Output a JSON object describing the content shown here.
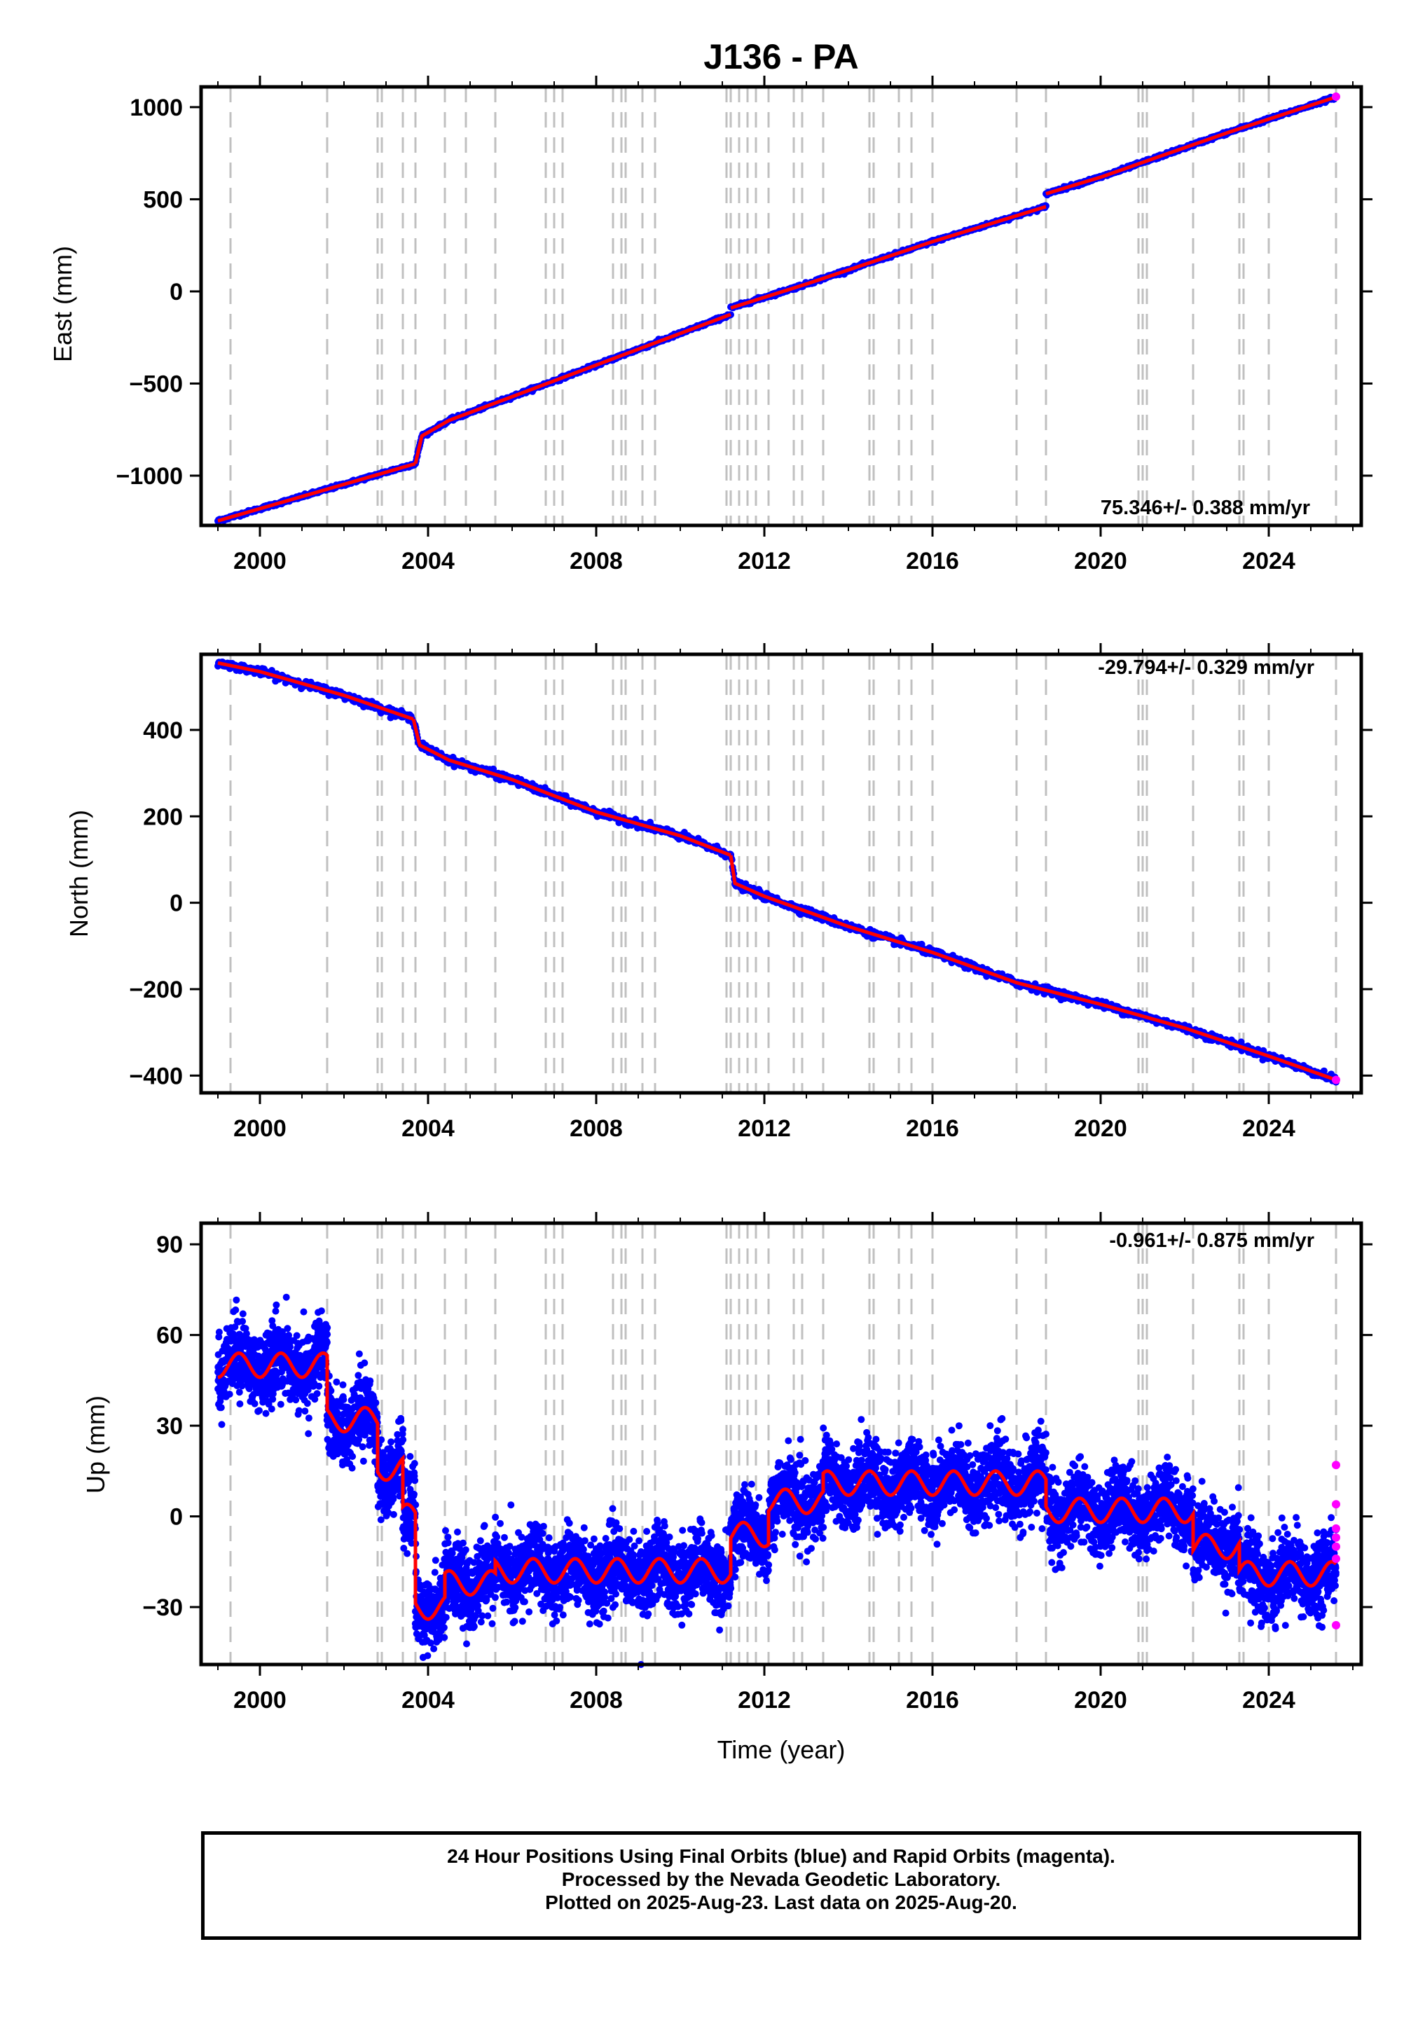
{
  "title": "J136 - PA",
  "xlabel": "Time (year)",
  "colors": {
    "final_orbits": "#0000ff",
    "rapid_orbits": "#ff00ff",
    "model": "#ff0000",
    "equipment_change": "#c0c0c0"
  },
  "footer": {
    "line1": "24 Hour Positions Using Final Orbits (blue) and Rapid Orbits (magenta).",
    "line2": "Processed by the Nevada Geodetic Laboratory.",
    "line3": "Plotted on 2025-Aug-23. Last data on 2025-Aug-20."
  },
  "chart_data": [
    {
      "type": "scatter",
      "ylabel": "East (mm)",
      "rate_label": "75.346+/- 0.388 mm/yr",
      "xlim": [
        1998.6,
        2026.2
      ],
      "ylim": [
        -1270,
        1110
      ],
      "x_ticks": [
        2000,
        2004,
        2008,
        2012,
        2016,
        2020,
        2024
      ],
      "x_tick_labels": [
        "2000",
        "2004",
        "2008",
        "2012",
        "2016",
        "2020",
        "2024"
      ],
      "y_ticks": [
        -1000,
        -500,
        0,
        500,
        1000
      ],
      "y_tick_labels": [
        "−1000",
        "−500",
        "0",
        "500",
        "1000"
      ],
      "equipment_change_years": [
        1999.3,
        2001.6,
        2002.8,
        2002.9,
        2003.4,
        2003.7,
        2004.4,
        2004.9,
        2005.6,
        2006.8,
        2007.0,
        2007.2,
        2008.4,
        2008.6,
        2008.7,
        2009.1,
        2009.4,
        2011.1,
        2011.2,
        2011.4,
        2011.6,
        2011.8,
        2012.1,
        2012.7,
        2012.9,
        2013.4,
        2014.5,
        2014.6,
        2015.2,
        2015.5,
        2016.0,
        2018.0,
        2018.7,
        2020.9,
        2021.0,
        2021.1,
        2022.2,
        2023.3,
        2023.4,
        2024.0,
        2025.6
      ],
      "trend_segments": [
        {
          "x": [
            1999.0,
            2003.7
          ],
          "y": [
            -1245,
            -935
          ]
        },
        {
          "x": [
            2003.7,
            2003.85,
            2004.5,
            2011.2
          ],
          "y": [
            -935,
            -785,
            -700,
            -125
          ]
        },
        {
          "x": [
            2011.2,
            2013.0,
            2016.0,
            2018.7
          ],
          "y": [
            -90,
            40,
            270,
            460
          ]
        },
        {
          "x": [
            2018.7,
            2020.0,
            2023.0,
            2025.6
          ],
          "y": [
            530,
            620,
            860,
            1055
          ]
        }
      ],
      "rapid_points": [
        [
          2025.6,
          1057
        ]
      ]
    },
    {
      "type": "scatter",
      "ylabel": "North (mm)",
      "rate_label": "-29.794+/- 0.329 mm/yr",
      "xlim": [
        1998.6,
        2026.2
      ],
      "ylim": [
        -440,
        575
      ],
      "x_ticks": [
        2000,
        2004,
        2008,
        2012,
        2016,
        2020,
        2024
      ],
      "x_tick_labels": [
        "2000",
        "2004",
        "2008",
        "2012",
        "2016",
        "2020",
        "2024"
      ],
      "y_ticks": [
        -400,
        -200,
        0,
        200,
        400
      ],
      "y_tick_labels": [
        "−400",
        "−200",
        "0",
        "200",
        "400"
      ],
      "equipment_change_years": [
        1999.3,
        2001.6,
        2002.8,
        2002.9,
        2003.4,
        2003.7,
        2004.4,
        2004.9,
        2005.6,
        2006.8,
        2007.0,
        2007.2,
        2008.4,
        2008.6,
        2008.7,
        2009.1,
        2009.4,
        2011.1,
        2011.2,
        2011.4,
        2011.6,
        2011.8,
        2012.1,
        2012.7,
        2012.9,
        2013.4,
        2014.5,
        2014.6,
        2015.2,
        2015.5,
        2016.0,
        2018.0,
        2018.7,
        2020.9,
        2021.0,
        2021.1,
        2022.2,
        2023.3,
        2023.4,
        2024.0,
        2025.6
      ],
      "trend_segments": [
        {
          "x": [
            1999.0,
            2000.0,
            2002.0,
            2003.65
          ],
          "y": [
            555,
            535,
            480,
            425
          ]
        },
        {
          "x": [
            2003.65,
            2003.8,
            2004.5,
            2006.0,
            2008.0,
            2010.0,
            2011.2
          ],
          "y": [
            425,
            365,
            330,
            285,
            210,
            155,
            110
          ]
        },
        {
          "x": [
            2011.2,
            2011.3,
            2012.0,
            2014.0,
            2016.0,
            2018.0,
            2020.0,
            2022.0,
            2024.0,
            2025.6
          ],
          "y": [
            110,
            45,
            15,
            -55,
            -115,
            -185,
            -235,
            -290,
            -355,
            -410
          ]
        }
      ],
      "rapid_points": [
        [
          2025.6,
          -410
        ]
      ]
    },
    {
      "type": "scatter",
      "ylabel": "Up (mm)",
      "rate_label": "-0.961+/- 0.875 mm/yr",
      "xlim": [
        1998.6,
        2026.2
      ],
      "ylim": [
        -49,
        97
      ],
      "x_ticks": [
        2000,
        2004,
        2008,
        2012,
        2016,
        2020,
        2024
      ],
      "x_tick_labels": [
        "2000",
        "2004",
        "2008",
        "2012",
        "2016",
        "2020",
        "2024"
      ],
      "y_ticks": [
        -30,
        0,
        30,
        60,
        90
      ],
      "y_tick_labels": [
        "−30",
        "0",
        "30",
        "60",
        "90"
      ],
      "equipment_change_years": [
        1999.3,
        2001.6,
        2002.8,
        2002.9,
        2003.4,
        2003.7,
        2004.4,
        2004.9,
        2005.6,
        2006.8,
        2007.0,
        2007.2,
        2008.4,
        2008.6,
        2008.7,
        2009.1,
        2009.4,
        2011.1,
        2011.2,
        2011.4,
        2011.6,
        2011.8,
        2012.1,
        2012.7,
        2012.9,
        2013.4,
        2014.5,
        2014.6,
        2015.2,
        2015.5,
        2016.0,
        2018.0,
        2018.7,
        2020.9,
        2021.0,
        2021.1,
        2022.2,
        2023.3,
        2023.4,
        2024.0,
        2025.6
      ],
      "model_offsets": [
        {
          "from": 1999.0,
          "to": 2001.6,
          "level": 50
        },
        {
          "from": 2001.6,
          "to": 2002.8,
          "level": 32
        },
        {
          "from": 2002.8,
          "to": 2003.4,
          "level": 16
        },
        {
          "from": 2003.4,
          "to": 2003.7,
          "level": 0
        },
        {
          "from": 2003.7,
          "to": 2004.4,
          "level": -30
        },
        {
          "from": 2004.4,
          "to": 2005.6,
          "level": -22
        },
        {
          "from": 2005.6,
          "to": 2011.2,
          "level": -18
        },
        {
          "from": 2011.2,
          "to": 2012.1,
          "level": -6
        },
        {
          "from": 2012.1,
          "to": 2013.4,
          "level": 5
        },
        {
          "from": 2013.4,
          "to": 2018.7,
          "level": 11
        },
        {
          "from": 2018.7,
          "to": 2022.2,
          "level": 2
        },
        {
          "from": 2022.2,
          "to": 2023.3,
          "level": -10
        },
        {
          "from": 2023.3,
          "to": 2025.6,
          "level": -19
        }
      ],
      "seasonal_amplitude_mm": 4,
      "scatter_sigma_mm": 6,
      "rapid_points": [
        [
          2025.6,
          17
        ],
        [
          2025.6,
          4
        ],
        [
          2025.6,
          -4
        ],
        [
          2025.6,
          -7
        ],
        [
          2025.6,
          -10
        ],
        [
          2025.6,
          -14
        ],
        [
          2025.6,
          -36
        ]
      ]
    }
  ]
}
